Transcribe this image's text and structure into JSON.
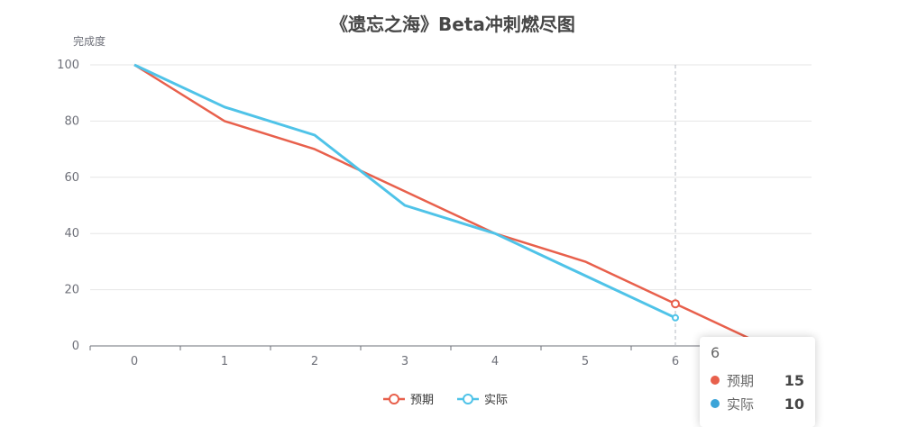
{
  "chart_data": {
    "type": "line",
    "title": "《遗忘之海》Beta冲刺燃尽图",
    "ylabel": "完成度",
    "xlabel": "",
    "x": [
      "0",
      "1",
      "2",
      "3",
      "4",
      "5",
      "6",
      "7"
    ],
    "ylim": [
      0,
      100
    ],
    "yticks": [
      "0",
      "20",
      "40",
      "60",
      "80",
      "100"
    ],
    "xticks": [
      "0",
      "1",
      "2",
      "3",
      "4",
      "5",
      "6"
    ],
    "grid": true,
    "legend_position": "bottom",
    "series": [
      {
        "name": "预期",
        "color": "#e8604c",
        "values": [
          100,
          80,
          70,
          55,
          40,
          30,
          15,
          0
        ]
      },
      {
        "name": "实际",
        "color": "#4fc3e8",
        "values": [
          100,
          85,
          75,
          50,
          40,
          25,
          10,
          null
        ]
      }
    ],
    "hover_category": "6"
  },
  "tooltip": {
    "header": "6",
    "rows": [
      {
        "name": "预期",
        "value": "15",
        "color": "#e8604c"
      },
      {
        "name": "实际",
        "value": "10",
        "color": "#3ba4d8"
      }
    ]
  }
}
